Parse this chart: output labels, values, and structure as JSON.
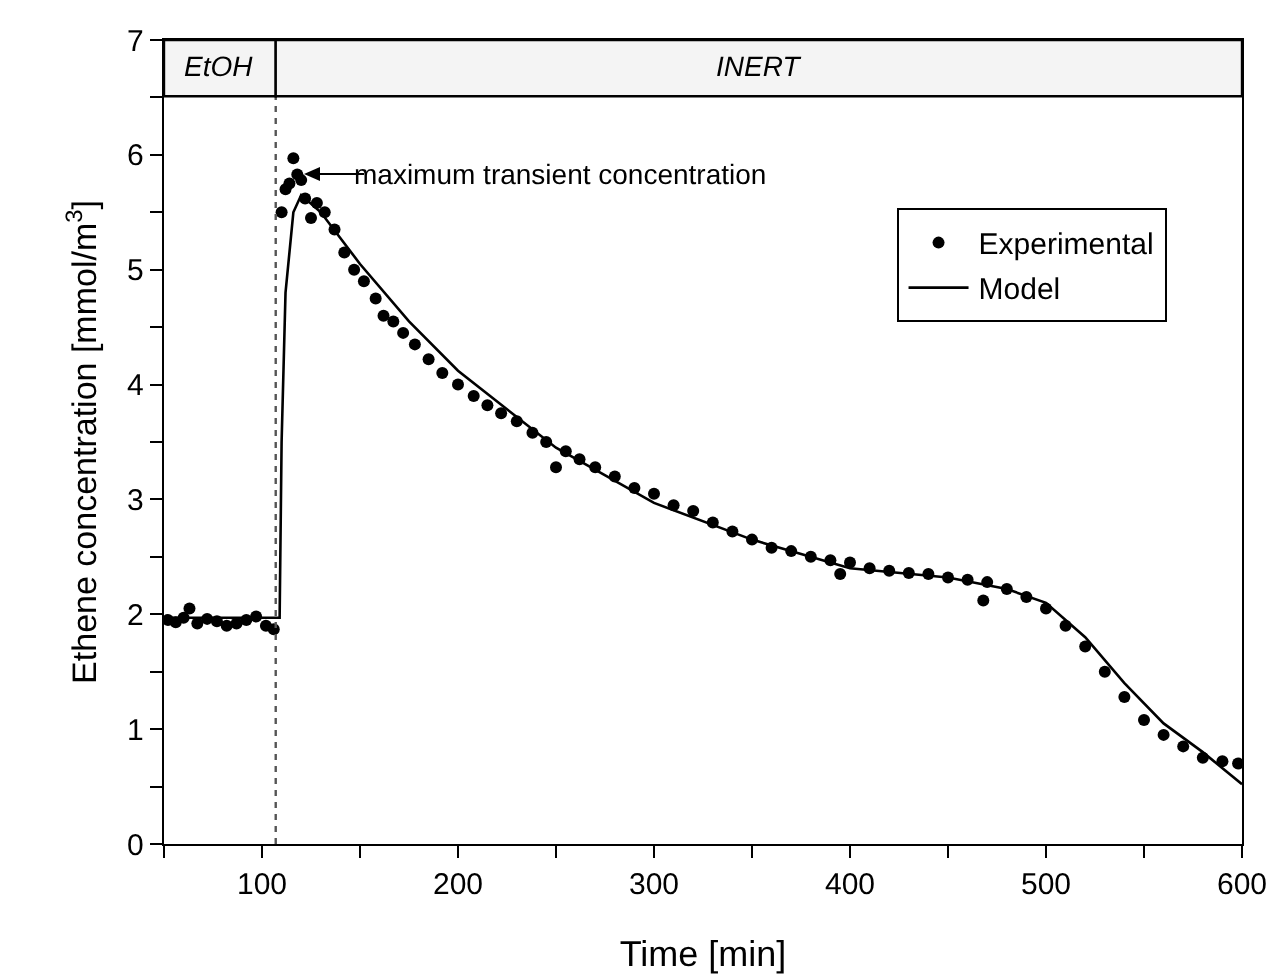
{
  "chart_data": {
    "type": "scatter",
    "xlabel": "Time [min]",
    "ylabel": "Ethene concentration [mmol/m$^{3}$]",
    "xlim": [
      50,
      600
    ],
    "ylim": [
      0,
      7
    ],
    "xticks": [
      {
        "value": 50,
        "label": null
      },
      100,
      {
        "value": 150,
        "label": null
      },
      200,
      {
        "value": 250,
        "label": null
      },
      300,
      {
        "value": 350,
        "label": null
      },
      400,
      {
        "value": 450,
        "label": null
      },
      500,
      {
        "value": 550,
        "label": null
      },
      600
    ],
    "yticks": [
      0,
      {
        "value": 0.5,
        "label": null
      },
      1,
      {
        "value": 1.5,
        "label": null
      },
      2,
      {
        "value": 2.5,
        "label": null
      },
      3,
      {
        "value": 3.5,
        "label": null
      },
      4,
      {
        "value": 4.5,
        "label": null
      },
      5,
      {
        "value": 5.5,
        "label": null
      },
      6,
      {
        "value": 6.5,
        "label": null
      },
      7
    ],
    "grid": false,
    "legend": "right",
    "series": [
      {
        "name": "Experimental",
        "type": "scatter",
        "marker": "circle",
        "color": "#000000",
        "x": [
          52,
          56,
          60,
          63,
          67,
          72,
          77,
          82,
          87,
          92,
          97,
          102,
          106,
          110,
          112,
          114,
          116,
          118,
          120,
          122,
          125,
          128,
          132,
          137,
          142,
          147,
          152,
          158,
          162,
          167,
          172,
          178,
          185,
          192,
          200,
          208,
          215,
          222,
          230,
          238,
          245,
          250,
          255,
          262,
          270,
          280,
          290,
          300,
          310,
          320,
          330,
          340,
          350,
          360,
          370,
          380,
          390,
          395,
          400,
          410,
          420,
          430,
          440,
          450,
          460,
          468,
          470,
          480,
          490,
          500,
          510,
          520,
          530,
          540,
          550,
          560,
          570,
          580,
          590,
          598
        ],
        "values": [
          1.95,
          1.93,
          1.97,
          2.05,
          1.92,
          1.96,
          1.94,
          1.9,
          1.92,
          1.95,
          1.98,
          1.9,
          1.87,
          5.5,
          5.7,
          5.75,
          5.97,
          5.83,
          5.78,
          5.62,
          5.45,
          5.58,
          5.5,
          5.35,
          5.15,
          5.0,
          4.9,
          4.75,
          4.6,
          4.55,
          4.45,
          4.35,
          4.22,
          4.1,
          4.0,
          3.9,
          3.82,
          3.75,
          3.68,
          3.58,
          3.5,
          3.28,
          3.42,
          3.35,
          3.28,
          3.2,
          3.1,
          3.05,
          2.95,
          2.9,
          2.8,
          2.72,
          2.65,
          2.58,
          2.55,
          2.5,
          2.47,
          2.35,
          2.45,
          2.4,
          2.38,
          2.36,
          2.35,
          2.32,
          2.3,
          2.12,
          2.28,
          2.22,
          2.15,
          2.05,
          1.9,
          1.72,
          1.5,
          1.28,
          1.08,
          0.95,
          0.85,
          0.75,
          0.72,
          0.7
        ]
      },
      {
        "name": "Model",
        "type": "line",
        "line_style": "solid",
        "color": "#000000",
        "x": [
          50,
          107,
          109,
          110,
          112,
          116,
          120,
          130,
          150,
          175,
          200,
          250,
          300,
          350,
          400,
          450,
          480,
          500,
          520,
          540,
          560,
          580,
          600
        ],
        "values": [
          1.97,
          1.97,
          1.97,
          3.5,
          4.8,
          5.5,
          5.65,
          5.5,
          5.05,
          4.55,
          4.12,
          3.45,
          2.97,
          2.65,
          2.4,
          2.32,
          2.22,
          2.1,
          1.8,
          1.4,
          1.05,
          0.8,
          0.52
        ]
      }
    ],
    "ref_lines": [
      {
        "axis": "x",
        "value": 107,
        "line_style": "dotted",
        "color": "#555555"
      }
    ],
    "bands": [
      {
        "axis": "x",
        "from": 50,
        "to": 107,
        "label": "EtOH",
        "color": "#f4f4f4"
      },
      {
        "axis": "x",
        "from": 107,
        "to": 600,
        "label": "INERT",
        "color": "#f4f4f4"
      }
    ],
    "annotations": [
      "maximum transient concentration"
    ]
  }
}
